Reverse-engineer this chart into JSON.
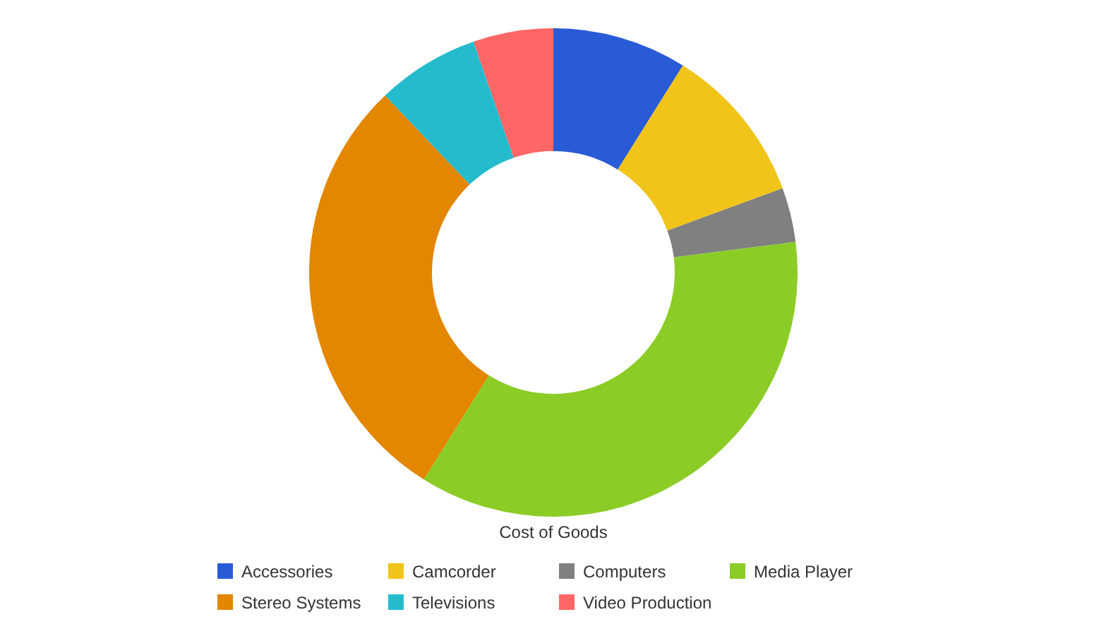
{
  "chart_data": {
    "type": "donut",
    "title": "Cost of Goods",
    "categories": [
      "Accessories",
      "Camcorder",
      "Computers",
      "Media Player",
      "Stereo Systems",
      "Televisions",
      "Video Production"
    ],
    "values": [
      8.9,
      10.5,
      3.6,
      35.9,
      29.0,
      6.8,
      5.3
    ],
    "colors": [
      "#2a5bd7",
      "#f0c419",
      "#808080",
      "#8bcc26",
      "#e38600",
      "#24bccd",
      "#ff6666"
    ],
    "legend": "bottom"
  }
}
